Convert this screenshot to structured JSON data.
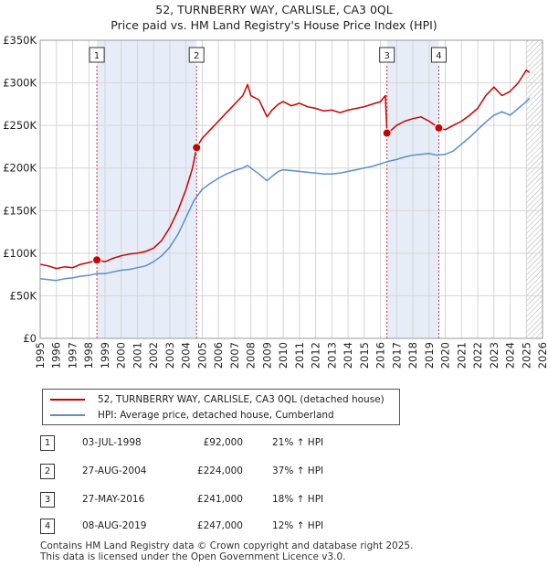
{
  "title": "52, TURNBERRY WAY, CARLISLE, CA3 0QL",
  "subtitle": "Price paid vs. HM Land Registry's House Price Index (HPI)",
  "colors": {
    "property": "#cc0000",
    "hpi": "#5b8fcb",
    "shade": "#e6edf8",
    "grid": "#d5d5d5",
    "marker_line": "#cc3333"
  },
  "chart_data": {
    "type": "line",
    "xlim": [
      1995,
      2026
    ],
    "ylim": [
      0,
      350000
    ],
    "x_ticks": [
      "1995",
      "1996",
      "1997",
      "1998",
      "1999",
      "2000",
      "2001",
      "2002",
      "2003",
      "2004",
      "2005",
      "2006",
      "2007",
      "2008",
      "2009",
      "2010",
      "2011",
      "2012",
      "2013",
      "2014",
      "2015",
      "2016",
      "2017",
      "2018",
      "2019",
      "2020",
      "2021",
      "2022",
      "2023",
      "2024",
      "2025",
      "2026"
    ],
    "y_ticks": [
      {
        "value": 0,
        "label": "£0"
      },
      {
        "value": 50000,
        "label": "£50K"
      },
      {
        "value": 100000,
        "label": "£100K"
      },
      {
        "value": 150000,
        "label": "£150K"
      },
      {
        "value": 200000,
        "label": "£200K"
      },
      {
        "value": 250000,
        "label": "£250K"
      },
      {
        "value": 300000,
        "label": "£300K"
      },
      {
        "value": 350000,
        "label": "£350K"
      }
    ],
    "shaded_ranges": [
      [
        1998.5,
        2004.65
      ],
      [
        2016.4,
        2019.6
      ]
    ],
    "future_hatch_from": 2025.0,
    "series": [
      {
        "name": "52, TURNBERRY WAY, CARLISLE, CA3 0QL (detached house)",
        "x": [
          1995,
          1995.5,
          1996,
          1996.5,
          1997,
          1997.5,
          1998,
          1998.5,
          1999,
          1999.5,
          2000,
          2000.5,
          2001,
          2001.5,
          2002,
          2002.5,
          2003,
          2003.5,
          2004,
          2004.4,
          2004.65,
          2005,
          2005.5,
          2006,
          2006.5,
          2007,
          2007.5,
          2007.8,
          2008,
          2008.5,
          2009,
          2009.3,
          2009.7,
          2010,
          2010.5,
          2011,
          2011.5,
          2012,
          2012.5,
          2013,
          2013.5,
          2014,
          2014.5,
          2015,
          2015.5,
          2016,
          2016.3,
          2016.4,
          2016.7,
          2017,
          2017.5,
          2018,
          2018.5,
          2019,
          2019.6,
          2020,
          2020.5,
          2021,
          2021.5,
          2022,
          2022.5,
          2023,
          2023.5,
          2024,
          2024.5,
          2025,
          2025.2
        ],
        "values": [
          87000,
          85000,
          82000,
          84000,
          83000,
          87000,
          89000,
          92000,
          90000,
          94000,
          97000,
          99000,
          100000,
          102000,
          106000,
          115000,
          130000,
          150000,
          175000,
          200000,
          224000,
          235000,
          245000,
          255000,
          265000,
          275000,
          285000,
          298000,
          285000,
          280000,
          260000,
          268000,
          275000,
          278000,
          273000,
          276000,
          272000,
          270000,
          267000,
          268000,
          265000,
          268000,
          270000,
          272000,
          275000,
          278000,
          285000,
          241000,
          245000,
          250000,
          255000,
          258000,
          260000,
          255000,
          247000,
          245000,
          250000,
          255000,
          262000,
          270000,
          285000,
          295000,
          285000,
          290000,
          300000,
          315000,
          312000
        ]
      },
      {
        "name": "HPI: Average price, detached house, Cumberland",
        "x": [
          1995,
          1995.5,
          1996,
          1996.5,
          1997,
          1997.5,
          1998,
          1998.5,
          1999,
          1999.5,
          2000,
          2000.5,
          2001,
          2001.5,
          2002,
          2002.5,
          2003,
          2003.5,
          2004,
          2004.5,
          2005,
          2005.5,
          2006,
          2006.5,
          2007,
          2007.5,
          2007.8,
          2008,
          2008.5,
          2009,
          2009.3,
          2009.7,
          2010,
          2010.5,
          2011,
          2011.5,
          2012,
          2012.5,
          2013,
          2013.5,
          2014,
          2014.5,
          2015,
          2015.5,
          2016,
          2016.5,
          2017,
          2017.5,
          2018,
          2018.5,
          2019,
          2019.5,
          2020,
          2020.5,
          2021,
          2021.5,
          2022,
          2022.5,
          2023,
          2023.5,
          2024,
          2024.5,
          2025,
          2025.2
        ],
        "values": [
          70000,
          69000,
          68000,
          70000,
          71000,
          73000,
          74000,
          76000,
          76000,
          78000,
          80000,
          81000,
          83000,
          85000,
          90000,
          97000,
          107000,
          122000,
          142000,
          162000,
          175000,
          182000,
          188000,
          193000,
          197000,
          200000,
          203000,
          200000,
          193000,
          185000,
          190000,
          196000,
          198000,
          197000,
          196000,
          195000,
          194000,
          193000,
          193000,
          194000,
          196000,
          198000,
          200000,
          202000,
          205000,
          208000,
          210000,
          213000,
          215000,
          216000,
          217000,
          215000,
          216000,
          220000,
          228000,
          236000,
          245000,
          254000,
          262000,
          266000,
          262000,
          270000,
          278000,
          282000
        ]
      }
    ],
    "sales": [
      {
        "label": "1",
        "x": 1998.5,
        "value": 92000
      },
      {
        "label": "2",
        "x": 2004.65,
        "value": 224000
      },
      {
        "label": "3",
        "x": 2016.4,
        "value": 241000
      },
      {
        "label": "4",
        "x": 2019.6,
        "value": 247000
      }
    ]
  },
  "legend": {
    "property": "52, TURNBERRY WAY, CARLISLE, CA3 0QL (detached house)",
    "hpi": "HPI: Average price, detached house, Cumberland"
  },
  "transactions": [
    {
      "num": "1",
      "date": "03-JUL-1998",
      "price": "£92,000",
      "hpi": "21% ↑ HPI"
    },
    {
      "num": "2",
      "date": "27-AUG-2004",
      "price": "£224,000",
      "hpi": "37% ↑ HPI"
    },
    {
      "num": "3",
      "date": "27-MAY-2016",
      "price": "£241,000",
      "hpi": "18% ↑ HPI"
    },
    {
      "num": "4",
      "date": "08-AUG-2019",
      "price": "£247,000",
      "hpi": "12% ↑ HPI"
    }
  ],
  "footer": {
    "line1": "Contains HM Land Registry data © Crown copyright and database right 2025.",
    "line2": "This data is licensed under the Open Government Licence v3.0."
  }
}
